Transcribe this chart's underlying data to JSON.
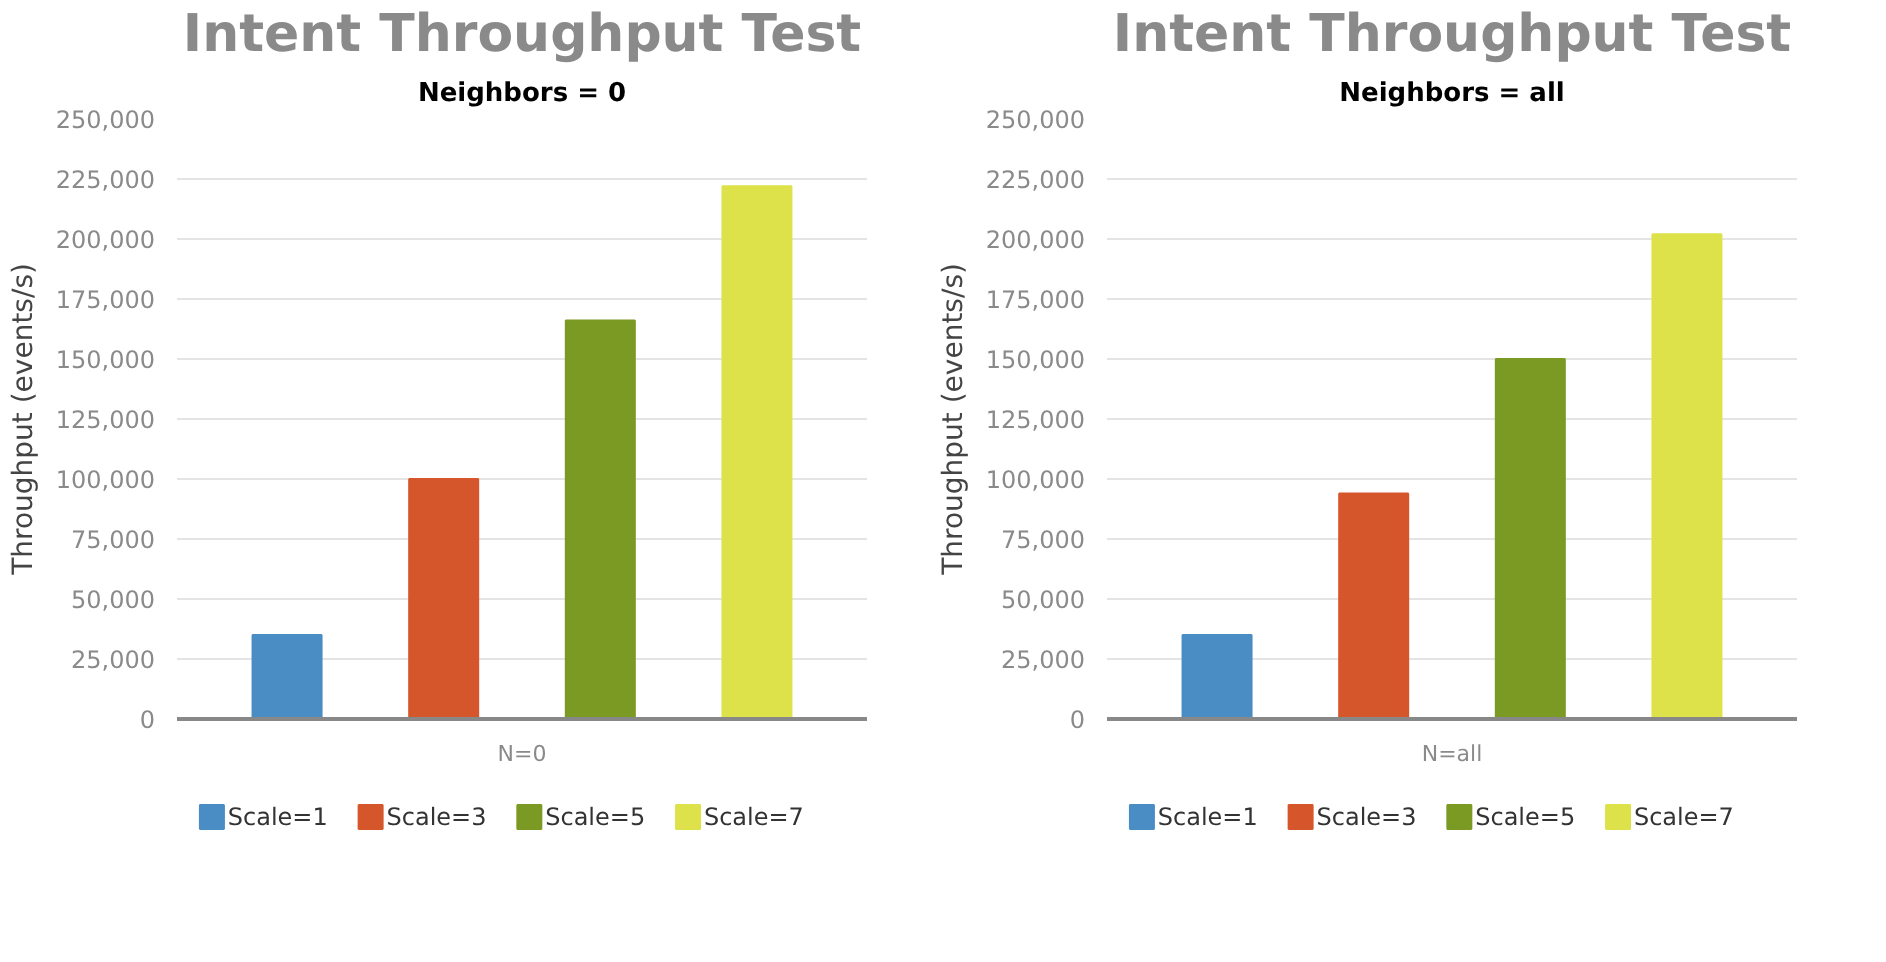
{
  "chart_data": [
    {
      "type": "bar",
      "title": "Intent Throughput Test",
      "subtitle": "Neighbors = 0",
      "ylabel": "Throughput (events/s)",
      "categories": [
        "N=0"
      ],
      "series": [
        {
          "name": "Scale=1",
          "color": "#4a8cc4",
          "values": [
            35000
          ]
        },
        {
          "name": "Scale=3",
          "color": "#d6562b",
          "values": [
            100000
          ]
        },
        {
          "name": "Scale=5",
          "color": "#7a9a24",
          "values": [
            166000
          ]
        },
        {
          "name": "Scale=7",
          "color": "#dde24a",
          "values": [
            222000
          ]
        }
      ],
      "ylim": [
        0,
        250000
      ],
      "yticks": [
        0,
        {
          "value": 25000,
          "label": "25,000"
        },
        {
          "value": 50000,
          "label": "50,000"
        },
        {
          "value": 75000,
          "label": "75,000"
        },
        {
          "value": 100000,
          "label": "100,000"
        },
        {
          "value": 125000,
          "label": "125,000"
        },
        {
          "value": 150000,
          "label": "150,000"
        },
        {
          "value": 175000,
          "label": "175,000"
        },
        {
          "value": 200000,
          "label": "200,000"
        },
        {
          "value": 225000,
          "label": "225,000"
        },
        {
          "value": 250000,
          "label": "250,000"
        }
      ],
      "grid": "y",
      "legend": "bottom"
    },
    {
      "type": "bar",
      "title": "Intent Throughput Test",
      "subtitle": "Neighbors = all",
      "ylabel": "Throughput (events/s)",
      "categories": [
        "N=all"
      ],
      "series": [
        {
          "name": "Scale=1",
          "color": "#4a8cc4",
          "values": [
            35000
          ]
        },
        {
          "name": "Scale=3",
          "color": "#d6562b",
          "values": [
            94000
          ]
        },
        {
          "name": "Scale=5",
          "color": "#7a9a24",
          "values": [
            150000
          ]
        },
        {
          "name": "Scale=7",
          "color": "#dde24a",
          "values": [
            202000
          ]
        }
      ],
      "ylim": [
        0,
        250000
      ],
      "yticks": [
        0,
        {
          "value": 25000,
          "label": "25,000"
        },
        {
          "value": 50000,
          "label": "50,000"
        },
        {
          "value": 75000,
          "label": "75,000"
        },
        {
          "value": 100000,
          "label": "100,000"
        },
        {
          "value": 125000,
          "label": "125,000"
        },
        {
          "value": 150000,
          "label": "150,000"
        },
        {
          "value": 175000,
          "label": "175,000"
        },
        {
          "value": 200000,
          "label": "200,000"
        },
        {
          "value": 225000,
          "label": "225,000"
        },
        {
          "value": 250000,
          "label": "250,000"
        }
      ],
      "grid": "y",
      "legend": "bottom"
    }
  ]
}
